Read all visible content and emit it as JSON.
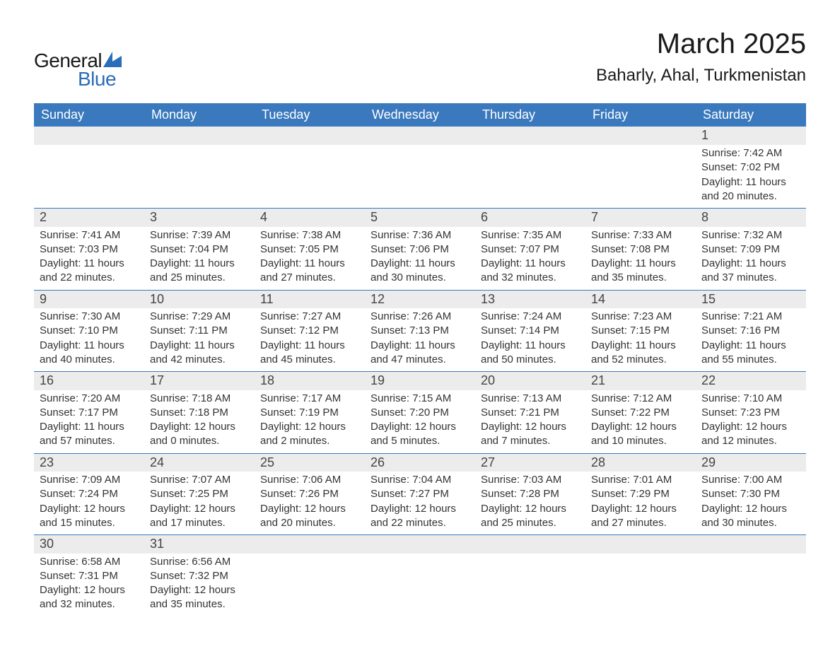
{
  "logo": {
    "text_general": "General",
    "text_blue": "Blue",
    "sail_color": "#2a6db8",
    "general_color": "#1a1a1a"
  },
  "title": "March 2025",
  "location": "Baharly, Ahal, Turkmenistan",
  "colors": {
    "header_bg": "#3a79bd",
    "header_text": "#ffffff",
    "daynum_bg": "#ececec",
    "row_border": "#3a79bd",
    "body_text": "#333333",
    "background": "#ffffff"
  },
  "typography": {
    "title_fontsize": 40,
    "location_fontsize": 24,
    "header_fontsize": 18,
    "daynum_fontsize": 18,
    "detail_fontsize": 15,
    "font_family": "Arial"
  },
  "weekday_headers": [
    "Sunday",
    "Monday",
    "Tuesday",
    "Wednesday",
    "Thursday",
    "Friday",
    "Saturday"
  ],
  "weeks": [
    {
      "nums": [
        "",
        "",
        "",
        "",
        "",
        "",
        "1"
      ],
      "details": [
        "",
        "",
        "",
        "",
        "",
        "",
        "Sunrise: 7:42 AM\nSunset: 7:02 PM\nDaylight: 11 hours and 20 minutes."
      ]
    },
    {
      "nums": [
        "2",
        "3",
        "4",
        "5",
        "6",
        "7",
        "8"
      ],
      "details": [
        "Sunrise: 7:41 AM\nSunset: 7:03 PM\nDaylight: 11 hours and 22 minutes.",
        "Sunrise: 7:39 AM\nSunset: 7:04 PM\nDaylight: 11 hours and 25 minutes.",
        "Sunrise: 7:38 AM\nSunset: 7:05 PM\nDaylight: 11 hours and 27 minutes.",
        "Sunrise: 7:36 AM\nSunset: 7:06 PM\nDaylight: 11 hours and 30 minutes.",
        "Sunrise: 7:35 AM\nSunset: 7:07 PM\nDaylight: 11 hours and 32 minutes.",
        "Sunrise: 7:33 AM\nSunset: 7:08 PM\nDaylight: 11 hours and 35 minutes.",
        "Sunrise: 7:32 AM\nSunset: 7:09 PM\nDaylight: 11 hours and 37 minutes."
      ]
    },
    {
      "nums": [
        "9",
        "10",
        "11",
        "12",
        "13",
        "14",
        "15"
      ],
      "details": [
        "Sunrise: 7:30 AM\nSunset: 7:10 PM\nDaylight: 11 hours and 40 minutes.",
        "Sunrise: 7:29 AM\nSunset: 7:11 PM\nDaylight: 11 hours and 42 minutes.",
        "Sunrise: 7:27 AM\nSunset: 7:12 PM\nDaylight: 11 hours and 45 minutes.",
        "Sunrise: 7:26 AM\nSunset: 7:13 PM\nDaylight: 11 hours and 47 minutes.",
        "Sunrise: 7:24 AM\nSunset: 7:14 PM\nDaylight: 11 hours and 50 minutes.",
        "Sunrise: 7:23 AM\nSunset: 7:15 PM\nDaylight: 11 hours and 52 minutes.",
        "Sunrise: 7:21 AM\nSunset: 7:16 PM\nDaylight: 11 hours and 55 minutes."
      ]
    },
    {
      "nums": [
        "16",
        "17",
        "18",
        "19",
        "20",
        "21",
        "22"
      ],
      "details": [
        "Sunrise: 7:20 AM\nSunset: 7:17 PM\nDaylight: 11 hours and 57 minutes.",
        "Sunrise: 7:18 AM\nSunset: 7:18 PM\nDaylight: 12 hours and 0 minutes.",
        "Sunrise: 7:17 AM\nSunset: 7:19 PM\nDaylight: 12 hours and 2 minutes.",
        "Sunrise: 7:15 AM\nSunset: 7:20 PM\nDaylight: 12 hours and 5 minutes.",
        "Sunrise: 7:13 AM\nSunset: 7:21 PM\nDaylight: 12 hours and 7 minutes.",
        "Sunrise: 7:12 AM\nSunset: 7:22 PM\nDaylight: 12 hours and 10 minutes.",
        "Sunrise: 7:10 AM\nSunset: 7:23 PM\nDaylight: 12 hours and 12 minutes."
      ]
    },
    {
      "nums": [
        "23",
        "24",
        "25",
        "26",
        "27",
        "28",
        "29"
      ],
      "details": [
        "Sunrise: 7:09 AM\nSunset: 7:24 PM\nDaylight: 12 hours and 15 minutes.",
        "Sunrise: 7:07 AM\nSunset: 7:25 PM\nDaylight: 12 hours and 17 minutes.",
        "Sunrise: 7:06 AM\nSunset: 7:26 PM\nDaylight: 12 hours and 20 minutes.",
        "Sunrise: 7:04 AM\nSunset: 7:27 PM\nDaylight: 12 hours and 22 minutes.",
        "Sunrise: 7:03 AM\nSunset: 7:28 PM\nDaylight: 12 hours and 25 minutes.",
        "Sunrise: 7:01 AM\nSunset: 7:29 PM\nDaylight: 12 hours and 27 minutes.",
        "Sunrise: 7:00 AM\nSunset: 7:30 PM\nDaylight: 12 hours and 30 minutes."
      ]
    },
    {
      "nums": [
        "30",
        "31",
        "",
        "",
        "",
        "",
        ""
      ],
      "details": [
        "Sunrise: 6:58 AM\nSunset: 7:31 PM\nDaylight: 12 hours and 32 minutes.",
        "Sunrise: 6:56 AM\nSunset: 7:32 PM\nDaylight: 12 hours and 35 minutes.",
        "",
        "",
        "",
        "",
        ""
      ]
    }
  ]
}
